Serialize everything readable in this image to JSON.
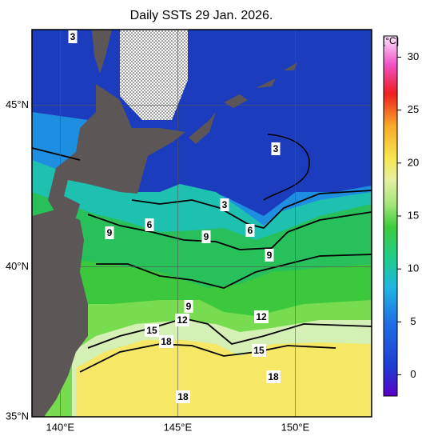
{
  "title": "Daily SSTs 29 Jan. 2026.",
  "map": {
    "lon_lim": [
      138.8,
      153.25
    ],
    "lat_lim": [
      35,
      47.2
    ],
    "lon_ticks": [
      {
        "value": 140,
        "label": "140°E"
      },
      {
        "value": 145,
        "label": "145°E"
      },
      {
        "value": 150,
        "label": "150°E"
      }
    ],
    "lat_ticks": [
      {
        "value": 45,
        "label": "45°N"
      },
      {
        "value": 40,
        "label": "40°N"
      },
      {
        "value": 35,
        "label": "35°N"
      }
    ],
    "contour_labels": [
      3,
      3,
      3,
      6,
      6,
      9,
      9,
      9,
      9,
      12,
      12,
      15,
      15,
      18,
      18,
      18
    ]
  },
  "colorbar": {
    "unit": "[°C]",
    "lim": [
      -2,
      32
    ],
    "ticks": [
      0,
      5,
      10,
      15,
      20,
      25,
      30
    ]
  }
}
